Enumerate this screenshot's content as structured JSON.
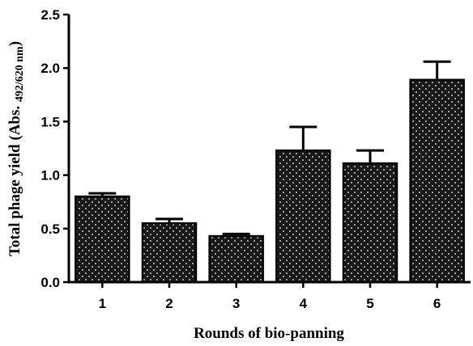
{
  "chart_data": {
    "type": "bar",
    "categories": [
      "1",
      "2",
      "3",
      "4",
      "5",
      "6"
    ],
    "values": [
      0.8,
      0.55,
      0.43,
      1.23,
      1.11,
      1.89
    ],
    "errors": [
      0.03,
      0.04,
      0.02,
      0.22,
      0.12,
      0.17
    ],
    "xlabel": "Rounds of bio-panning",
    "ylabel_main": "Total phage yield (Abs. ",
    "ylabel_sub": "492/620 nm",
    "ylabel_end": ")",
    "ylim": [
      0.0,
      2.5
    ],
    "yticks": [
      "0.0",
      "0.5",
      "1.0",
      "1.5",
      "2.0",
      "2.5"
    ],
    "grid": false,
    "bar_color": "#1a1a1a",
    "dot_color": "#ffffff"
  }
}
